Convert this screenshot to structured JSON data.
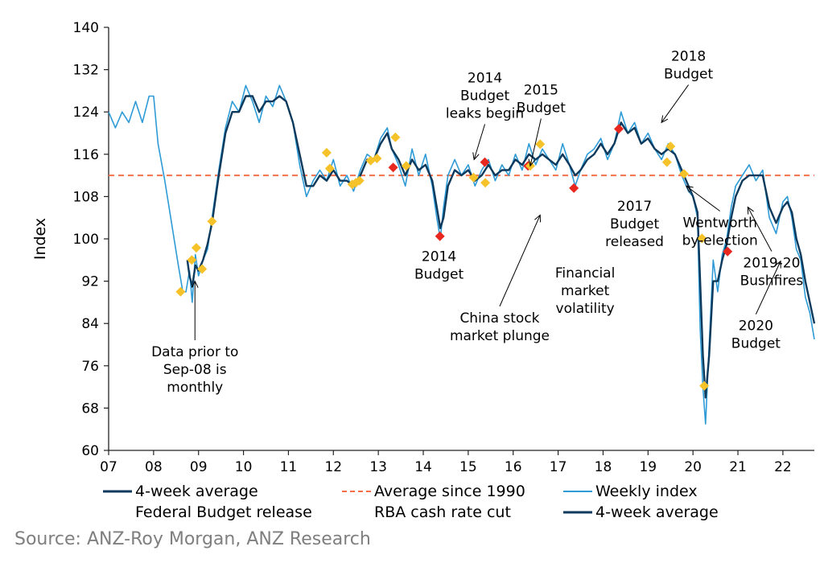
{
  "chart_data": {
    "type": "line",
    "ylabel": "Index",
    "ylim": [
      60,
      140
    ],
    "yticks": [
      "60",
      "68",
      "76",
      "84",
      "92",
      "100",
      "108",
      "116",
      "124",
      "132",
      "140"
    ],
    "xlim": [
      2007,
      2022.7
    ],
    "xticks": [
      "07",
      "08",
      "09",
      "10",
      "11",
      "12",
      "13",
      "14",
      "15",
      "16",
      "17",
      "18",
      "19",
      "20",
      "21",
      "22"
    ],
    "reference_line": {
      "name": "Average since 1990",
      "value": 112,
      "color": "#f4704a"
    },
    "series": [
      {
        "name": "Weekly index",
        "color": "#2e9bd6",
        "x": [
          2007.0,
          2007.15,
          2007.3,
          2007.45,
          2007.6,
          2007.75,
          2007.9,
          2008.0,
          2008.1,
          2008.25,
          2008.4,
          2008.55,
          2008.65,
          2008.72,
          2008.8,
          2008.86,
          2008.93,
          2009.0,
          2009.1,
          2009.2,
          2009.3,
          2009.45,
          2009.6,
          2009.75,
          2009.9,
          2010.05,
          2010.2,
          2010.35,
          2010.5,
          2010.65,
          2010.8,
          2010.95,
          2011.1,
          2011.25,
          2011.4,
          2011.55,
          2011.7,
          2011.85,
          2012.0,
          2012.15,
          2012.3,
          2012.45,
          2012.6,
          2012.75,
          2012.9,
          2013.05,
          2013.2,
          2013.3,
          2013.45,
          2013.6,
          2013.75,
          2013.9,
          2014.05,
          2014.2,
          2014.3,
          2014.38,
          2014.45,
          2014.55,
          2014.7,
          2014.85,
          2015.0,
          2015.15,
          2015.3,
          2015.45,
          2015.6,
          2015.75,
          2015.9,
          2016.05,
          2016.2,
          2016.35,
          2016.5,
          2016.65,
          2016.8,
          2016.95,
          2017.1,
          2017.25,
          2017.38,
          2017.5,
          2017.65,
          2017.8,
          2017.95,
          2018.1,
          2018.25,
          2018.4,
          2018.55,
          2018.7,
          2018.85,
          2019.0,
          2019.15,
          2019.3,
          2019.45,
          2019.6,
          2019.75,
          2019.9,
          2020.0,
          2020.1,
          2020.16,
          2020.22,
          2020.28,
          2020.36,
          2020.45,
          2020.55,
          2020.65,
          2020.75,
          2020.85,
          2020.95,
          2021.1,
          2021.25,
          2021.4,
          2021.55,
          2021.7,
          2021.85,
          2022.0,
          2022.1,
          2022.2,
          2022.3,
          2022.4,
          2022.5,
          2022.6,
          2022.7
        ],
        "values": [
          124,
          121,
          124,
          122,
          126,
          122,
          127,
          127,
          118,
          111,
          103,
          95,
          90,
          90,
          94,
          88,
          97,
          93,
          96,
          98,
          104,
          113,
          121,
          126,
          124,
          129,
          126,
          122,
          127,
          125,
          129,
          126,
          122,
          114,
          108,
          111,
          113,
          111,
          115,
          110,
          112,
          109,
          113,
          116,
          115,
          119,
          121,
          117,
          114,
          110,
          117,
          112,
          116,
          110,
          104,
          100,
          106,
          112,
          115,
          112,
          114,
          110,
          113,
          115,
          111,
          114,
          112,
          116,
          113,
          118,
          114,
          117,
          115,
          113,
          118,
          114,
          110,
          113,
          116,
          117,
          119,
          115,
          118,
          124,
          120,
          122,
          118,
          120,
          117,
          115,
          118,
          116,
          112,
          109,
          108,
          104,
          83,
          72,
          65,
          80,
          96,
          90,
          97,
          100,
          106,
          110,
          112,
          114,
          111,
          113,
          104,
          101,
          107,
          108,
          104,
          98,
          96,
          89,
          86,
          81
        ]
      },
      {
        "name": "4-week average",
        "color": "#0d3a5c",
        "x": [
          2008.75,
          2008.8,
          2008.86,
          2008.93,
          2009.0,
          2009.1,
          2009.2,
          2009.3,
          2009.45,
          2009.6,
          2009.75,
          2009.9,
          2010.05,
          2010.2,
          2010.35,
          2010.5,
          2010.65,
          2010.8,
          2010.95,
          2011.1,
          2011.25,
          2011.4,
          2011.55,
          2011.7,
          2011.85,
          2012.0,
          2012.15,
          2012.3,
          2012.45,
          2012.6,
          2012.75,
          2012.9,
          2013.05,
          2013.2,
          2013.3,
          2013.45,
          2013.6,
          2013.75,
          2013.9,
          2014.05,
          2014.2,
          2014.3,
          2014.38,
          2014.45,
          2014.55,
          2014.7,
          2014.85,
          2015.0,
          2015.15,
          2015.3,
          2015.45,
          2015.6,
          2015.75,
          2015.9,
          2016.05,
          2016.2,
          2016.35,
          2016.5,
          2016.65,
          2016.8,
          2016.95,
          2017.1,
          2017.25,
          2017.38,
          2017.5,
          2017.65,
          2017.8,
          2017.95,
          2018.1,
          2018.25,
          2018.4,
          2018.55,
          2018.7,
          2018.85,
          2019.0,
          2019.15,
          2019.3,
          2019.45,
          2019.6,
          2019.75,
          2019.9,
          2020.0,
          2020.1,
          2020.16,
          2020.22,
          2020.28,
          2020.36,
          2020.45,
          2020.55,
          2020.65,
          2020.75,
          2020.85,
          2020.95,
          2021.1,
          2021.25,
          2021.4,
          2021.55,
          2021.7,
          2021.85,
          2022.0,
          2022.1,
          2022.2,
          2022.3,
          2022.4,
          2022.5,
          2022.6,
          2022.7
        ],
        "values": [
          96,
          93,
          91,
          95,
          94,
          96,
          99,
          103,
          112,
          120,
          124,
          124,
          127,
          127,
          124,
          126,
          126,
          127,
          126,
          122,
          116,
          110,
          110,
          112,
          111,
          113,
          111,
          111,
          110,
          112,
          115,
          115,
          118,
          120,
          117,
          115,
          112,
          115,
          113,
          114,
          111,
          106,
          102,
          104,
          110,
          113,
          112,
          113,
          111,
          112,
          114,
          112,
          113,
          113,
          115,
          114,
          116,
          115,
          116,
          115,
          114,
          116,
          114,
          112,
          113,
          115,
          116,
          118,
          116,
          118,
          122,
          120,
          121,
          118,
          119,
          117,
          116,
          117,
          116,
          113,
          110,
          108,
          105,
          92,
          78,
          70,
          78,
          92,
          92,
          96,
          99,
          104,
          108,
          111,
          112,
          112,
          112,
          106,
          103,
          106,
          107,
          105,
          100,
          97,
          92,
          88,
          84
        ]
      }
    ],
    "markers": [
      {
        "name": "Federal Budget release",
        "color": "#e8281e",
        "x": [
          2013.33,
          2014.37,
          2015.37,
          2016.33,
          2017.35,
          2018.35,
          2020.77
        ],
        "values": [
          113.5,
          100.5,
          114.5,
          113.8,
          109.6,
          120.8,
          97.6
        ]
      },
      {
        "name": "RBA cash rate cut",
        "color": "#f6c22a",
        "x": [
          2008.6,
          2008.85,
          2008.95,
          2009.08,
          2009.3,
          2011.85,
          2011.92,
          2012.42,
          2012.5,
          2012.58,
          2012.83,
          2012.97,
          2013.38,
          2013.62,
          2015.12,
          2015.38,
          2016.38,
          2016.6,
          2019.42,
          2019.5,
          2019.8,
          2020.2,
          2020.25
        ],
        "values": [
          90,
          96,
          98.3,
          94.3,
          103.3,
          116.3,
          113.3,
          110.3,
          110.6,
          111,
          114.8,
          115.2,
          119.2,
          113.8,
          111.6,
          110.6,
          113.8,
          117.9,
          114.5,
          117.5,
          112.3,
          100.1,
          72.2
        ]
      }
    ],
    "annotations": [
      {
        "name": "monthly-note",
        "lines": [
          "Data prior to",
          "Sep-08 is",
          "monthly"
        ],
        "tx": 2008.92,
        "ty": 77.8,
        "ax": 2008.92,
        "ay": 92
      },
      {
        "name": "leaks",
        "lines": [
          "2014",
          "Budget",
          "leaks begin"
        ],
        "tx": 2015.37,
        "ty": 129.6,
        "ax": 2015.13,
        "ay": 115
      },
      {
        "name": "budget2015",
        "lines": [
          "2015",
          "Budget"
        ],
        "tx": 2016.62,
        "ty": 127.3,
        "ax": 2016.38,
        "ay": 113.8
      },
      {
        "name": "budget2014",
        "lines": [
          "2014",
          "Budget"
        ],
        "tx": 2014.35,
        "ty": 95.8,
        "ax": null,
        "ay": null
      },
      {
        "name": "china",
        "lines": [
          "China stock",
          "market plunge"
        ],
        "tx": 2015.7,
        "ty": 84.2,
        "ax": 2016.6,
        "ay": 104.5
      },
      {
        "name": "volatility",
        "lines": [
          "Financial",
          "market",
          "volatility"
        ],
        "tx": 2017.6,
        "ty": 92.7,
        "ax": null,
        "ay": null
      },
      {
        "name": "budget2017",
        "lines": [
          "2017",
          "Budget",
          "released"
        ],
        "tx": 2018.7,
        "ty": 105.3,
        "ax": null,
        "ay": null
      },
      {
        "name": "budget2018",
        "lines": [
          "2018",
          "Budget"
        ],
        "tx": 2019.9,
        "ty": 133.7,
        "ax": 2019.3,
        "ay": 122
      },
      {
        "name": "wentworth",
        "lines": [
          "Wentworth",
          "by-election"
        ],
        "tx": 2020.6,
        "ty": 102.2,
        "ax": 2019.85,
        "ay": 110
      },
      {
        "name": "bushfires",
        "lines": [
          "2019-20",
          "Bushfires"
        ],
        "tx": 2021.75,
        "ty": 94.6,
        "ax": 2021.22,
        "ay": 106
      },
      {
        "name": "budget2020",
        "lines": [
          "2020",
          "Budget"
        ],
        "tx": 2021.4,
        "ty": 82.7,
        "ax": 2021.95,
        "ay": 95.8
      }
    ],
    "legend": {
      "placement": "bottom",
      "entries": [
        {
          "label": "4-week average",
          "kind": "line-dark"
        },
        {
          "label": "Average since 1990",
          "kind": "dash-red"
        },
        {
          "label": "Weekly index",
          "kind": "line-light"
        },
        {
          "label": "Federal Budget release",
          "kind": "none"
        },
        {
          "label": "RBA cash rate cut",
          "kind": "none"
        },
        {
          "label": "4-week average",
          "kind": "line-dark"
        }
      ]
    }
  },
  "source_note": "Source: ANZ-Roy Morgan, ANZ Research"
}
